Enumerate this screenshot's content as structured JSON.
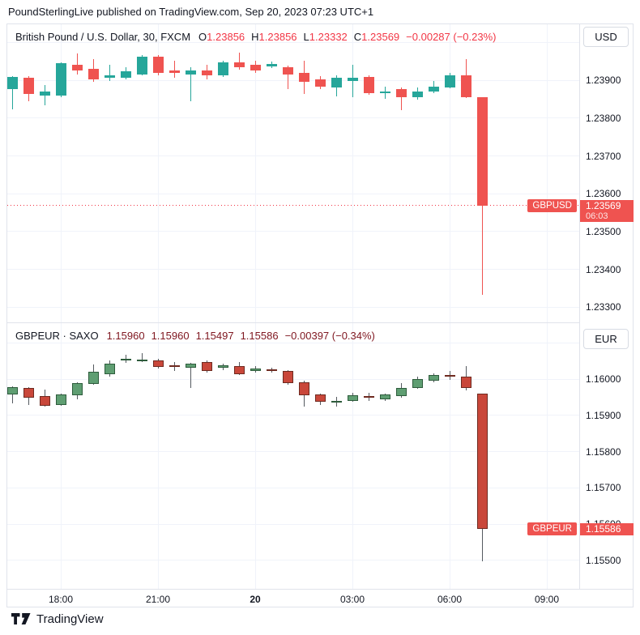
{
  "page": {
    "caption": "PoundSterlingLive published on TradingView.com, Sep 20, 2023 07:23 UTC+1",
    "footer_brand": "TradingView"
  },
  "colors": {
    "background": "#ffffff",
    "grid": "#f0f3fa",
    "frame_border": "#e0e3eb",
    "text": "#131722",
    "pane1_values_red": "#f23645",
    "pane2_values_maroon": "#801922",
    "price_badge_red": "#ef5350"
  },
  "panes": [
    {
      "legend": {
        "title": "British Pound / U.S. Dollar, 30, FXCM",
        "items": [
          {
            "label": "O",
            "value": "1.23856"
          },
          {
            "label": "H",
            "value": "1.23856"
          },
          {
            "label": "L",
            "value": "1.23332"
          },
          {
            "label": "C",
            "value": "1.23569"
          }
        ],
        "change": "−0.00287 (−0.23%)"
      },
      "currency_button": "USD",
      "symbol_badge": "GBPUSD",
      "price_badge": {
        "price": "1.23569",
        "time": "06:03"
      }
    },
    {
      "legend": {
        "title": "GBPEUR · SAXO",
        "items": [
          {
            "label": "",
            "value": "1.15960"
          },
          {
            "label": "",
            "value": "1.15960"
          },
          {
            "label": "",
            "value": "1.15497"
          },
          {
            "label": "",
            "value": "1.15586"
          }
        ],
        "change": "−0.00397 (−0.34%)"
      },
      "currency_button": "EUR",
      "symbol_badge": "GBPEUR",
      "price_badge": {
        "price": "1.15586",
        "time": ""
      }
    }
  ],
  "time_axis": {
    "labels": [
      {
        "text": "18:00",
        "index": 3,
        "bold": false
      },
      {
        "text": "21:00",
        "index": 9,
        "bold": false
      },
      {
        "text": "20",
        "index": 15,
        "bold": true
      },
      {
        "text": "03:00",
        "index": 21,
        "bold": false
      },
      {
        "text": "06:00",
        "index": 27,
        "bold": false
      },
      {
        "text": "09:00",
        "index": 33,
        "bold": false
      }
    ]
  },
  "chart_data": [
    {
      "type": "candlestick",
      "symbol": "GBPUSD",
      "title": "British Pound / U.S. Dollar",
      "interval": "30",
      "exchange": "FXCM",
      "currency": "USD",
      "ohlc": {
        "open": 1.23856,
        "high": 1.23856,
        "low": 1.23332,
        "close": 1.23569,
        "change": "−0.00287",
        "change_pct": "−0.23%"
      },
      "last_price": 1.23569,
      "last_time": "06:03",
      "price_line_visible": true,
      "style": "solid",
      "colors": {
        "up": "#26a69a",
        "down": "#ef5350"
      },
      "ylim": [
        1.2326,
        1.24048
      ],
      "grid_values": [
        1.24,
        1.239,
        1.238,
        1.237,
        1.236,
        1.235,
        1.234,
        1.233
      ],
      "y_ticks": [
        "1.23900",
        "1.23800",
        "1.23700",
        "1.23600",
        "1.23500",
        "1.23400",
        "1.23300"
      ],
      "x_labels": [
        "18:00",
        "21:00",
        "20",
        "03:00",
        "06:00",
        "09:00"
      ],
      "times": [
        "16:30",
        "17:00",
        "17:30",
        "18:00",
        "18:30",
        "19:00",
        "19:30",
        "20:00",
        "20:30",
        "21:00",
        "21:30",
        "22:00",
        "22:30",
        "23:00",
        "23:30",
        "00:00",
        "00:30",
        "01:00",
        "01:30",
        "02:00",
        "02:30",
        "03:00",
        "03:30",
        "04:00",
        "04:30",
        "05:00",
        "05:30",
        "06:00",
        "06:30",
        "07:00"
      ],
      "candles": [
        [
          1.23877,
          1.23912,
          1.23824,
          1.23909
        ],
        [
          1.23906,
          1.2391,
          1.23845,
          1.23863
        ],
        [
          1.23859,
          1.23888,
          1.23834,
          1.2387
        ],
        [
          1.23859,
          1.23948,
          1.23855,
          1.23945
        ],
        [
          1.23941,
          1.2397,
          1.23916,
          1.23927
        ],
        [
          1.23931,
          1.23956,
          1.23895,
          1.23902
        ],
        [
          1.23907,
          1.23941,
          1.23899,
          1.23914
        ],
        [
          1.23906,
          1.23934,
          1.23902,
          1.23924
        ],
        [
          1.23916,
          1.23966,
          1.23914,
          1.23963
        ],
        [
          1.23963,
          1.23966,
          1.23912,
          1.2392
        ],
        [
          1.23927,
          1.23952,
          1.23906,
          1.2392
        ],
        [
          1.23916,
          1.23934,
          1.23845,
          1.23927
        ],
        [
          1.23927,
          1.23941,
          1.23902,
          1.23913
        ],
        [
          1.23913,
          1.23952,
          1.23909,
          1.23948
        ],
        [
          1.23948,
          1.23973,
          1.23928,
          1.23935
        ],
        [
          1.23941,
          1.23952,
          1.2392,
          1.23927
        ],
        [
          1.23936,
          1.2395,
          1.23932,
          1.23943
        ],
        [
          1.23934,
          1.23938,
          1.23877,
          1.23916
        ],
        [
          1.2392,
          1.23952,
          1.23863,
          1.23895
        ],
        [
          1.23902,
          1.23912,
          1.23877,
          1.23884
        ],
        [
          1.23881,
          1.23913,
          1.23857,
          1.23906
        ],
        [
          1.23899,
          1.23941,
          1.23856,
          1.23906
        ],
        [
          1.23909,
          1.23913,
          1.23861,
          1.23866
        ],
        [
          1.23866,
          1.23884,
          1.23852,
          1.2387
        ],
        [
          1.23877,
          1.2388,
          1.2382,
          1.23856
        ],
        [
          1.23856,
          1.23881,
          1.23849,
          1.2387
        ],
        [
          1.2387,
          1.23898,
          1.23866,
          1.23884
        ],
        [
          1.23881,
          1.2392,
          1.23879,
          1.23913
        ],
        [
          1.23913,
          1.23956,
          1.23853,
          1.23856
        ],
        [
          1.23856,
          1.23856,
          1.23332,
          1.23569
        ]
      ]
    },
    {
      "type": "candlestick",
      "symbol": "GBPEUR",
      "exchange": "SAXO",
      "currency": "EUR",
      "ohlc": {
        "open": 1.1596,
        "high": 1.1596,
        "low": 1.15497,
        "close": 1.15586,
        "change": "−0.00397",
        "change_pct": "−0.34%"
      },
      "last_price": 1.15586,
      "price_line_visible": false,
      "style": "bordered",
      "colors": {
        "up_fill": "#5f9e72",
        "up_border": "#2e5c3c",
        "down_fill": "#c9473a",
        "down_border": "#6e2a20",
        "wick": "#555a60"
      },
      "ylim": [
        1.15421,
        1.16155
      ],
      "grid_values": [
        1.161,
        1.16,
        1.159,
        1.158,
        1.157,
        1.156,
        1.155
      ],
      "y_ticks": [
        "1.16000",
        "1.15900",
        "1.15800",
        "1.15700",
        "1.15600",
        "1.15500"
      ],
      "x_labels": [
        "18:00",
        "21:00",
        "20",
        "03:00",
        "06:00",
        "09:00"
      ],
      "candles": [
        [
          1.15959,
          1.15981,
          1.15933,
          1.15979
        ],
        [
          1.15976,
          1.15978,
          1.15929,
          1.15948
        ],
        [
          1.15954,
          1.15972,
          1.15925,
          1.15927
        ],
        [
          1.15928,
          1.15961,
          1.15926,
          1.15958
        ],
        [
          1.15955,
          1.15991,
          1.15944,
          1.15989
        ],
        [
          1.15987,
          1.16041,
          1.15985,
          1.1602
        ],
        [
          1.16015,
          1.16052,
          1.16007,
          1.16043
        ],
        [
          1.16053,
          1.16067,
          1.16045,
          1.16057
        ],
        [
          1.16051,
          1.16072,
          1.16048,
          1.16055
        ],
        [
          1.16052,
          1.16056,
          1.1603,
          1.16034
        ],
        [
          1.16039,
          1.16048,
          1.16022,
          1.16036
        ],
        [
          1.16033,
          1.16046,
          1.15975,
          1.16042
        ],
        [
          1.16048,
          1.16052,
          1.16018,
          1.16022
        ],
        [
          1.16031,
          1.16044,
          1.16026,
          1.16038
        ],
        [
          1.16037,
          1.16048,
          1.16011,
          1.16015
        ],
        [
          1.16023,
          1.16036,
          1.16018,
          1.1603
        ],
        [
          1.16028,
          1.16032,
          1.16019,
          1.16023
        ],
        [
          1.16023,
          1.16026,
          1.15984,
          1.15989
        ],
        [
          1.15992,
          1.15995,
          1.15925,
          1.15955
        ],
        [
          1.15958,
          1.1596,
          1.1593,
          1.15937
        ],
        [
          1.15938,
          1.15951,
          1.15925,
          1.15941
        ],
        [
          1.1594,
          1.15963,
          1.15937,
          1.15955
        ],
        [
          1.15954,
          1.15963,
          1.1594,
          1.15949
        ],
        [
          1.15945,
          1.15961,
          1.15941,
          1.15958
        ],
        [
          1.15953,
          1.1599,
          1.15949,
          1.15977
        ],
        [
          1.15977,
          1.16007,
          1.15973,
          1.16
        ],
        [
          1.15996,
          1.16016,
          1.15992,
          1.16011
        ],
        [
          1.16012,
          1.16022,
          1.15999,
          1.16008
        ],
        [
          1.16007,
          1.16037,
          1.15969,
          1.15977
        ],
        [
          1.1596,
          1.1596,
          1.15497,
          1.15586
        ]
      ]
    }
  ]
}
